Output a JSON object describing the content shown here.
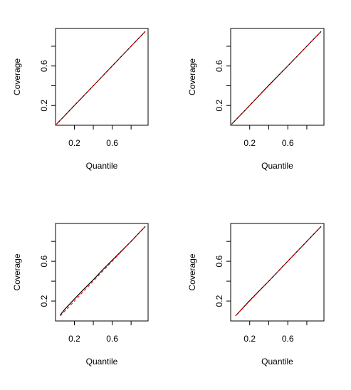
{
  "chart_data": [
    {
      "type": "line",
      "xlabel": "Quantile",
      "ylabel": "Coverage",
      "xlim": [
        0.0,
        0.98
      ],
      "ylim": [
        0.0,
        0.98
      ],
      "xticks": [
        0.2,
        0.4,
        0.6,
        0.8
      ],
      "xtick_labels": [
        "0.2",
        "",
        "0.6",
        ""
      ],
      "yticks": [
        0.2,
        0.4,
        0.6,
        0.8
      ],
      "ytick_labels": [
        "0.2",
        "",
        "0.6",
        ""
      ],
      "series": [
        {
          "color": "#000000",
          "dash": "solid",
          "x": [
            0.01,
            0.2,
            0.4,
            0.6,
            0.8,
            0.95
          ],
          "y": [
            0.01,
            0.2,
            0.4,
            0.6,
            0.8,
            0.95
          ]
        },
        {
          "color": "#ff0000",
          "dash": "dashed",
          "x": [
            0.01,
            0.95
          ],
          "y": [
            0.01,
            0.95
          ]
        }
      ]
    },
    {
      "type": "line",
      "xlabel": "Quantile",
      "ylabel": "Coverage",
      "xlim": [
        0.0,
        0.98
      ],
      "ylim": [
        0.0,
        0.98
      ],
      "xticks": [
        0.2,
        0.4,
        0.6,
        0.8
      ],
      "xtick_labels": [
        "0.2",
        "",
        "0.6",
        ""
      ],
      "yticks": [
        0.2,
        0.4,
        0.6,
        0.8
      ],
      "ytick_labels": [
        "0.2",
        "",
        "0.6",
        ""
      ],
      "series": [
        {
          "color": "#000000",
          "dash": "solid",
          "x": [
            0.01,
            0.2,
            0.4,
            0.6,
            0.8,
            0.95
          ],
          "y": [
            0.01,
            0.2,
            0.405,
            0.6,
            0.8,
            0.95
          ]
        },
        {
          "color": "#ff0000",
          "dash": "dashed",
          "x": [
            0.01,
            0.95
          ],
          "y": [
            0.01,
            0.95
          ]
        }
      ]
    },
    {
      "type": "line",
      "xlabel": "Quantile",
      "ylabel": "Coverage",
      "xlim": [
        0.0,
        0.98
      ],
      "ylim": [
        0.0,
        0.98
      ],
      "xticks": [
        0.2,
        0.4,
        0.6,
        0.8
      ],
      "xtick_labels": [
        "0.2",
        "",
        "0.6",
        ""
      ],
      "yticks": [
        0.2,
        0.4,
        0.6,
        0.8
      ],
      "ytick_labels": [
        "0.2",
        "",
        "0.6",
        ""
      ],
      "series": [
        {
          "color": "#000000",
          "dash": "solid",
          "x": [
            0.05,
            0.1,
            0.2,
            0.3,
            0.4,
            0.5,
            0.6,
            0.7,
            0.8,
            0.95
          ],
          "y": [
            0.06,
            0.12,
            0.22,
            0.32,
            0.415,
            0.515,
            0.61,
            0.705,
            0.8,
            0.95
          ]
        },
        {
          "color": "#ff0000",
          "dash": "dashed",
          "x": [
            0.05,
            0.95
          ],
          "y": [
            0.05,
            0.95
          ]
        }
      ]
    },
    {
      "type": "line",
      "xlabel": "Quantile",
      "ylabel": "Coverage",
      "xlim": [
        0.0,
        0.98
      ],
      "ylim": [
        0.0,
        0.98
      ],
      "xticks": [
        0.2,
        0.4,
        0.6,
        0.8
      ],
      "xtick_labels": [
        "0.2",
        "",
        "0.6",
        ""
      ],
      "yticks": [
        0.2,
        0.4,
        0.6,
        0.8
      ],
      "ytick_labels": [
        "0.2",
        "",
        "0.6",
        ""
      ],
      "series": [
        {
          "color": "#000000",
          "dash": "solid",
          "x": [
            0.05,
            0.2,
            0.4,
            0.6,
            0.8,
            0.95
          ],
          "y": [
            0.05,
            0.205,
            0.4,
            0.6,
            0.8,
            0.95
          ]
        },
        {
          "color": "#ff0000",
          "dash": "dashed",
          "x": [
            0.05,
            0.95
          ],
          "y": [
            0.05,
            0.95
          ]
        }
      ]
    }
  ]
}
